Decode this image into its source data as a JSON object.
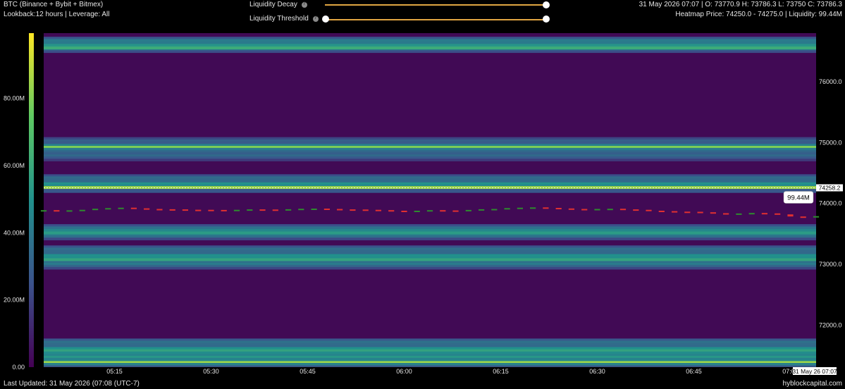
{
  "header": {
    "title": "BTC (Binance + Bybit + Bitmex)",
    "subtitle": "Lookback:12 hours | Leverage: All",
    "ohlc": "31 May 2026 07:07 | O: 73770.9 H: 73786.3 L: 73750 C: 73786.3",
    "heatmap_info": "Heatmap Price: 74250.0 - 74275.0 | Liquidity: 99.44M"
  },
  "controls": {
    "liquidity_decay_label": "Liquidity Decay",
    "liquidity_decay_value": 1.0,
    "liquidity_threshold_label": "Liquidity Threshold",
    "liquidity_threshold_range": [
      0.0,
      1.0
    ]
  },
  "footer": {
    "last_updated": "Last Updated: 31 May 2026 (07:08 (UTC-7)",
    "brand": "hyblockcapital.com"
  },
  "colors": {
    "background": "#000000",
    "heat_low": "#440154",
    "heat_mid": "#21918c",
    "heat_high": "#fde725",
    "candle_up": "#2e8b2e",
    "candle_down": "#e03030",
    "slider": "#e0a542"
  },
  "chart_data": {
    "type": "heatmap",
    "colorbar": {
      "ticks": [
        "0.00",
        "20.00M",
        "40.00M",
        "60.00M",
        "80.00M"
      ],
      "tick_values": [
        0,
        20,
        40,
        60,
        80
      ],
      "range": [
        0,
        99.44
      ]
    },
    "xaxis": {
      "ticks": [
        "05:15",
        "05:30",
        "05:45",
        "06:00",
        "06:15",
        "06:30",
        "06:45",
        "07:00"
      ],
      "tick_minutes": [
        315,
        330,
        345,
        360,
        375,
        390,
        405,
        420
      ],
      "range_minutes": [
        304,
        424
      ],
      "last_label": "31 May 26 07:07"
    },
    "yaxis": {
      "ticks": [
        "72000.0",
        "73000.0",
        "74000.0",
        "75000.0",
        "76000.0"
      ],
      "tick_values": [
        72000,
        73000,
        74000,
        75000,
        76000
      ],
      "range": [
        71310,
        76800
      ],
      "current_price_label": "74258.2",
      "current_price": 74258.2
    },
    "tooltip": "99.44M",
    "bands": [
      {
        "low": 71320,
        "high": 71780,
        "intensity": 0.65
      },
      {
        "low": 71350,
        "high": 71440,
        "intensity": 0.85
      },
      {
        "low": 72920,
        "high": 73310,
        "intensity": 0.6
      },
      {
        "low": 73060,
        "high": 73140,
        "intensity": 0.8
      },
      {
        "low": 73400,
        "high": 73660,
        "intensity": 0.55
      },
      {
        "low": 73500,
        "high": 73580,
        "intensity": 0.75
      },
      {
        "low": 74180,
        "high": 74480,
        "intensity": 0.55
      },
      {
        "low": 74245,
        "high": 74285,
        "intensity": 1.0
      },
      {
        "low": 74700,
        "high": 75090,
        "intensity": 0.5
      },
      {
        "low": 74880,
        "high": 74980,
        "intensity": 0.8
      },
      {
        "low": 76480,
        "high": 76740,
        "intensity": 0.6
      },
      {
        "low": 76540,
        "high": 76620,
        "intensity": 0.85
      }
    ],
    "price_series": [
      {
        "t": 304,
        "o": 73880,
        "c": 73885
      },
      {
        "t": 306,
        "o": 73885,
        "c": 73880
      },
      {
        "t": 308,
        "o": 73880,
        "c": 73882
      },
      {
        "t": 310,
        "o": 73882,
        "c": 73890
      },
      {
        "t": 312,
        "o": 73890,
        "c": 73908
      },
      {
        "t": 314,
        "o": 73908,
        "c": 73918
      },
      {
        "t": 316,
        "o": 73918,
        "c": 73925
      },
      {
        "t": 318,
        "o": 73925,
        "c": 73915
      },
      {
        "t": 320,
        "o": 73915,
        "c": 73905
      },
      {
        "t": 322,
        "o": 73905,
        "c": 73900
      },
      {
        "t": 324,
        "o": 73900,
        "c": 73898
      },
      {
        "t": 326,
        "o": 73898,
        "c": 73892
      },
      {
        "t": 328,
        "o": 73892,
        "c": 73890
      },
      {
        "t": 330,
        "o": 73890,
        "c": 73888
      },
      {
        "t": 332,
        "o": 73888,
        "c": 73885
      },
      {
        "t": 334,
        "o": 73885,
        "c": 73890
      },
      {
        "t": 336,
        "o": 73890,
        "c": 73898
      },
      {
        "t": 338,
        "o": 73898,
        "c": 73895
      },
      {
        "t": 340,
        "o": 73895,
        "c": 73893
      },
      {
        "t": 342,
        "o": 73893,
        "c": 73900
      },
      {
        "t": 344,
        "o": 73900,
        "c": 73908
      },
      {
        "t": 346,
        "o": 73908,
        "c": 73910
      },
      {
        "t": 348,
        "o": 73910,
        "c": 73905
      },
      {
        "t": 350,
        "o": 73905,
        "c": 73898
      },
      {
        "t": 352,
        "o": 73898,
        "c": 73895
      },
      {
        "t": 354,
        "o": 73895,
        "c": 73890
      },
      {
        "t": 356,
        "o": 73890,
        "c": 73885
      },
      {
        "t": 358,
        "o": 73885,
        "c": 73875
      },
      {
        "t": 360,
        "o": 73875,
        "c": 73870
      },
      {
        "t": 362,
        "o": 73870,
        "c": 73875
      },
      {
        "t": 364,
        "o": 73875,
        "c": 73885
      },
      {
        "t": 366,
        "o": 73885,
        "c": 73880
      },
      {
        "t": 368,
        "o": 73880,
        "c": 73878
      },
      {
        "t": 370,
        "o": 73878,
        "c": 73888
      },
      {
        "t": 372,
        "o": 73888,
        "c": 73900
      },
      {
        "t": 374,
        "o": 73900,
        "c": 73905
      },
      {
        "t": 376,
        "o": 73905,
        "c": 73918
      },
      {
        "t": 378,
        "o": 73918,
        "c": 73925
      },
      {
        "t": 380,
        "o": 73925,
        "c": 73930
      },
      {
        "t": 382,
        "o": 73930,
        "c": 73922
      },
      {
        "t": 384,
        "o": 73922,
        "c": 73912
      },
      {
        "t": 386,
        "o": 73912,
        "c": 73905
      },
      {
        "t": 388,
        "o": 73905,
        "c": 73898
      },
      {
        "t": 390,
        "o": 73898,
        "c": 73905
      },
      {
        "t": 392,
        "o": 73905,
        "c": 73908
      },
      {
        "t": 394,
        "o": 73908,
        "c": 73898
      },
      {
        "t": 396,
        "o": 73898,
        "c": 73890
      },
      {
        "t": 398,
        "o": 73890,
        "c": 73875
      },
      {
        "t": 400,
        "o": 73875,
        "c": 73868
      },
      {
        "t": 402,
        "o": 73868,
        "c": 73860
      },
      {
        "t": 404,
        "o": 73860,
        "c": 73858
      },
      {
        "t": 406,
        "o": 73858,
        "c": 73850
      },
      {
        "t": 408,
        "o": 73850,
        "c": 73835
      },
      {
        "t": 410,
        "o": 73835,
        "c": 73820
      },
      {
        "t": 412,
        "o": 73820,
        "c": 73830
      },
      {
        "t": 414,
        "o": 73830,
        "c": 73838
      },
      {
        "t": 416,
        "o": 73838,
        "c": 73832
      },
      {
        "t": 418,
        "o": 73832,
        "c": 73815
      },
      {
        "t": 420,
        "o": 73815,
        "c": 73780
      },
      {
        "t": 422,
        "o": 73780,
        "c": 73765
      },
      {
        "t": 424,
        "o": 73765,
        "c": 73786
      }
    ]
  }
}
